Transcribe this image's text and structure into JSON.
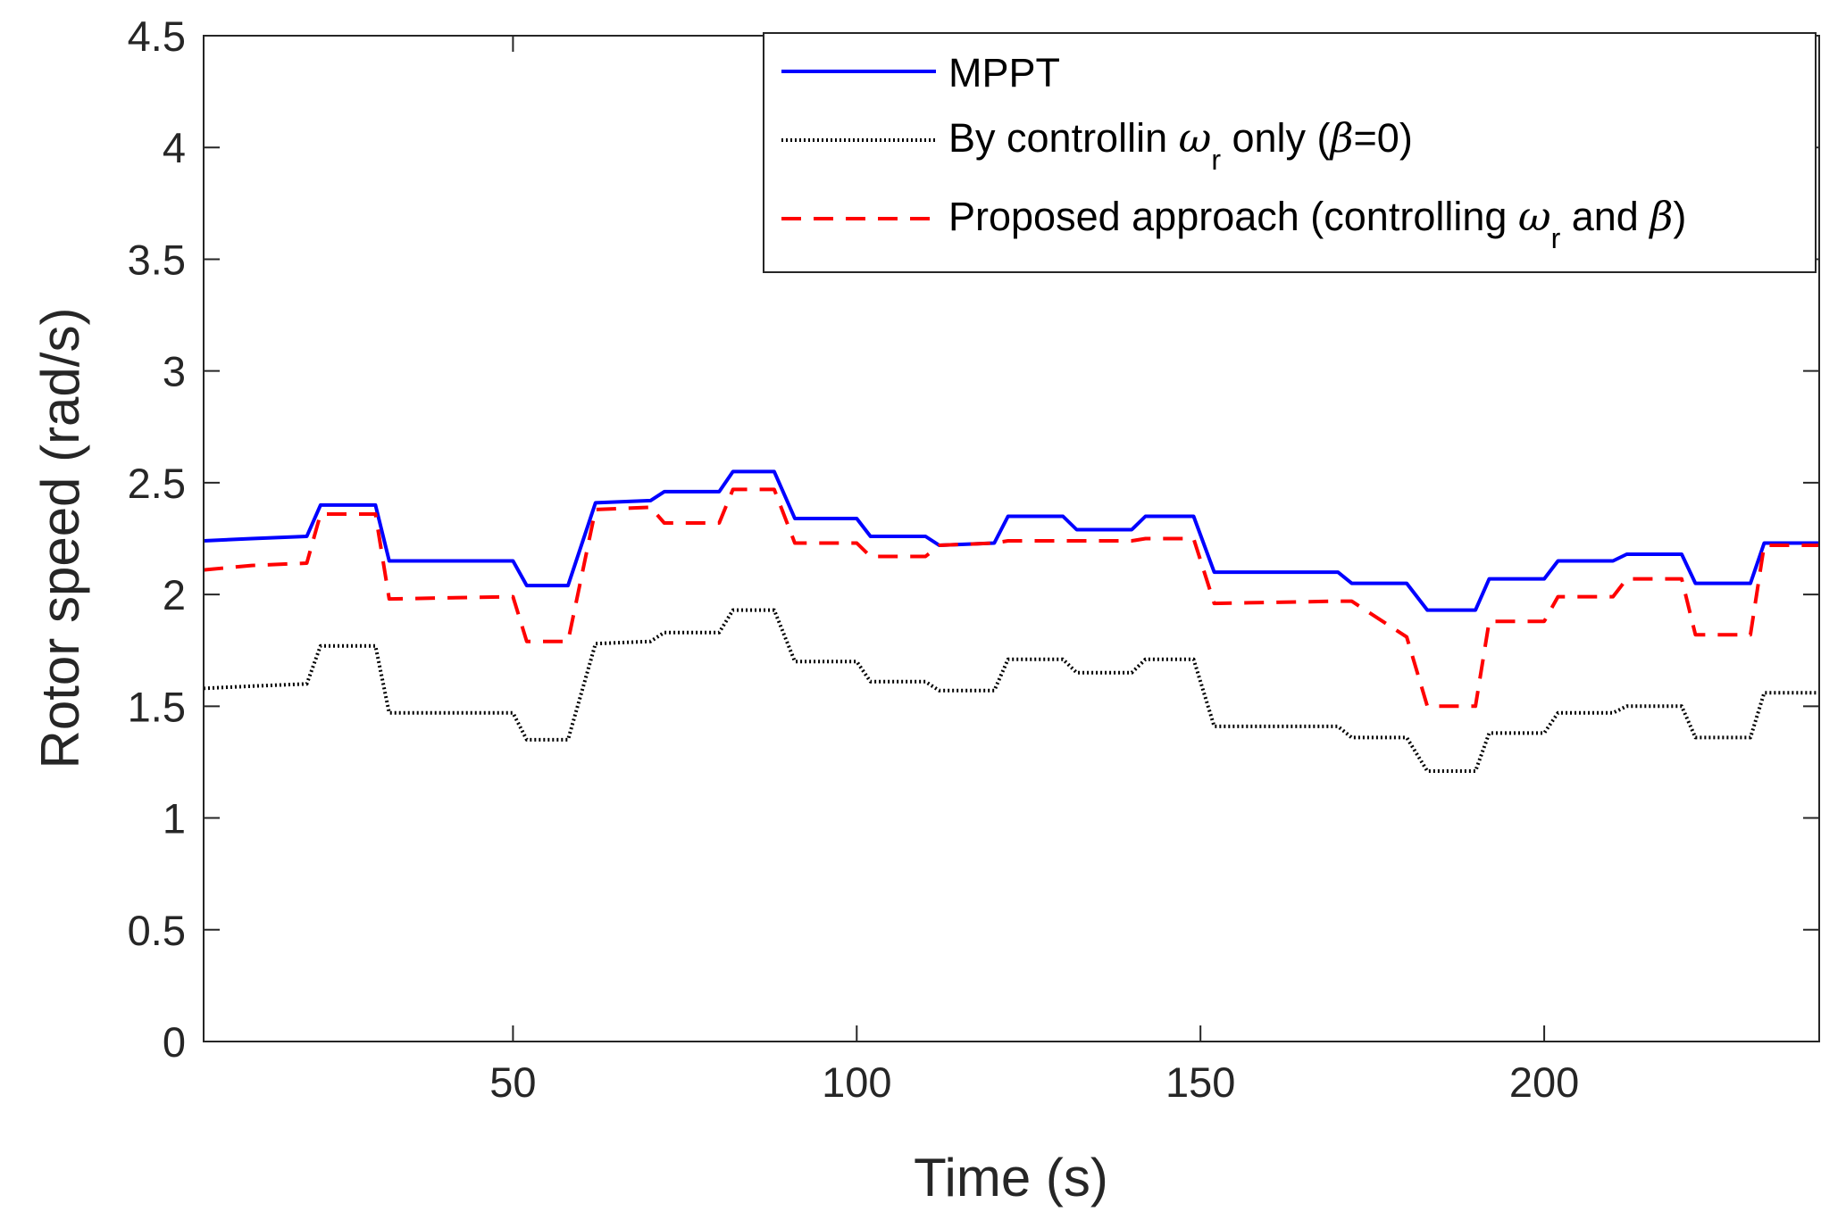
{
  "chart_data": {
    "type": "line",
    "xlabel": "Time (s)",
    "ylabel": "Rotor speed (rad/s)",
    "xlim": [
      5,
      240
    ],
    "ylim": [
      0,
      4.5
    ],
    "xticks": [
      50,
      100,
      150,
      200
    ],
    "yticks": [
      0,
      0.5,
      1,
      1.5,
      2,
      2.5,
      3,
      3.5,
      4,
      4.5
    ],
    "xtick_labels": [
      "50",
      "100",
      "150",
      "200"
    ],
    "ytick_labels": [
      "0",
      "0.5",
      "1",
      "1.5",
      "2",
      "2.5",
      "3",
      "3.5",
      "4",
      "4.5"
    ],
    "grid": false,
    "legend_position": "top-right",
    "series": [
      {
        "name": "MPPT",
        "color": "#0000ff",
        "style": "solid",
        "x": [
          5,
          12,
          20,
          22,
          30,
          32,
          50,
          52,
          58,
          62,
          70,
          72,
          80,
          82,
          88,
          91,
          100,
          102,
          110,
          112,
          120,
          122,
          130,
          132,
          140,
          142,
          149,
          152,
          170,
          172,
          180,
          183,
          190,
          192,
          200,
          202,
          210,
          212,
          220,
          222,
          230,
          232,
          240
        ],
        "y": [
          2.24,
          2.25,
          2.26,
          2.4,
          2.4,
          2.15,
          2.15,
          2.04,
          2.04,
          2.41,
          2.42,
          2.46,
          2.46,
          2.55,
          2.55,
          2.34,
          2.34,
          2.26,
          2.26,
          2.22,
          2.23,
          2.35,
          2.35,
          2.29,
          2.29,
          2.35,
          2.35,
          2.1,
          2.1,
          2.05,
          2.05,
          1.93,
          1.93,
          2.07,
          2.07,
          2.15,
          2.15,
          2.18,
          2.18,
          2.05,
          2.05,
          2.23,
          2.23
        ]
      },
      {
        "name": "By controllin",
        "color": "#000000",
        "style": "dotted",
        "x": [
          5,
          12,
          20,
          22,
          30,
          32,
          50,
          52,
          58,
          62,
          70,
          72,
          80,
          82,
          88,
          91,
          100,
          102,
          110,
          112,
          120,
          122,
          130,
          132,
          140,
          142,
          149,
          152,
          170,
          172,
          180,
          183,
          190,
          192,
          200,
          202,
          210,
          212,
          220,
          222,
          230,
          232,
          240
        ],
        "y": [
          1.58,
          1.59,
          1.6,
          1.77,
          1.77,
          1.47,
          1.47,
          1.35,
          1.35,
          1.78,
          1.79,
          1.83,
          1.83,
          1.93,
          1.93,
          1.7,
          1.7,
          1.61,
          1.61,
          1.57,
          1.57,
          1.71,
          1.71,
          1.65,
          1.65,
          1.71,
          1.71,
          1.41,
          1.41,
          1.36,
          1.36,
          1.21,
          1.21,
          1.38,
          1.38,
          1.47,
          1.47,
          1.5,
          1.5,
          1.36,
          1.36,
          1.56,
          1.56
        ]
      },
      {
        "name": "Proposed approach",
        "color": "#ff0000",
        "style": "dashed",
        "x": [
          5,
          12,
          20,
          22,
          30,
          32,
          50,
          52,
          58,
          62,
          70,
          72,
          80,
          82,
          88,
          91,
          100,
          102,
          110,
          112,
          120,
          122,
          130,
          132,
          140,
          142,
          149,
          152,
          170,
          172,
          180,
          183,
          190,
          192,
          200,
          202,
          210,
          212,
          220,
          222,
          230,
          232,
          240
        ],
        "y": [
          2.11,
          2.13,
          2.14,
          2.36,
          2.36,
          1.98,
          1.99,
          1.79,
          1.79,
          2.38,
          2.39,
          2.32,
          2.32,
          2.47,
          2.47,
          2.23,
          2.23,
          2.17,
          2.17,
          2.22,
          2.23,
          2.24,
          2.24,
          2.24,
          2.24,
          2.25,
          2.25,
          1.96,
          1.97,
          1.97,
          1.81,
          1.5,
          1.5,
          1.88,
          1.88,
          1.99,
          1.99,
          2.07,
          2.07,
          1.82,
          1.82,
          2.22,
          2.22
        ]
      }
    ],
    "legend": [
      {
        "label": "MPPT",
        "color": "#0000ff",
        "style": "solid"
      },
      {
        "label_pre": "By controllin ",
        "sym": "ω",
        "sub": "r",
        "label_post": " only (",
        "sym2": "β",
        "label_end": "=0)",
        "color": "#000000",
        "style": "dotted"
      },
      {
        "label_pre": "Proposed approach (controlling ",
        "sym": "ω",
        "sub": "r",
        "label_post": " and ",
        "sym2": "β",
        "label_end": ")",
        "color": "#ff0000",
        "style": "dashed"
      }
    ]
  }
}
